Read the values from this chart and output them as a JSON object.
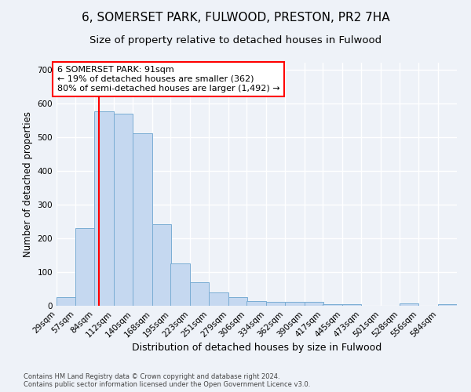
{
  "title": "6, SOMERSET PARK, FULWOOD, PRESTON, PR2 7HA",
  "subtitle": "Size of property relative to detached houses in Fulwood",
  "xlabel": "Distribution of detached houses by size in Fulwood",
  "ylabel": "Number of detached properties",
  "bar_edges": [
    29,
    57,
    84,
    112,
    140,
    168,
    195,
    223,
    251,
    279,
    306,
    334,
    362,
    390,
    417,
    445,
    473,
    501,
    528,
    556,
    584
  ],
  "bar_heights": [
    25,
    230,
    575,
    570,
    510,
    242,
    125,
    70,
    40,
    25,
    13,
    12,
    11,
    11,
    5,
    5,
    0,
    0,
    6,
    0,
    5
  ],
  "bar_color": "#c5d8f0",
  "bar_edge_color": "#7aadd4",
  "red_line_x": 91,
  "annotation_text": "6 SOMERSET PARK: 91sqm\n← 19% of detached houses are smaller (362)\n80% of semi-detached houses are larger (1,492) →",
  "annotation_box_color": "white",
  "annotation_box_edge": "red",
  "ylim": [
    0,
    720
  ],
  "yticks": [
    0,
    100,
    200,
    300,
    400,
    500,
    600,
    700
  ],
  "footer_line1": "Contains HM Land Registry data © Crown copyright and database right 2024.",
  "footer_line2": "Contains public sector information licensed under the Open Government Licence v3.0.",
  "bg_color": "#eef2f8",
  "plot_bg_color": "#eef2f8",
  "grid_color": "white",
  "title_fontsize": 11,
  "subtitle_fontsize": 9.5,
  "tick_label_fontsize": 7.5,
  "xlabel_fontsize": 9,
  "ylabel_fontsize": 8.5,
  "annotation_fontsize": 8,
  "footer_fontsize": 6
}
